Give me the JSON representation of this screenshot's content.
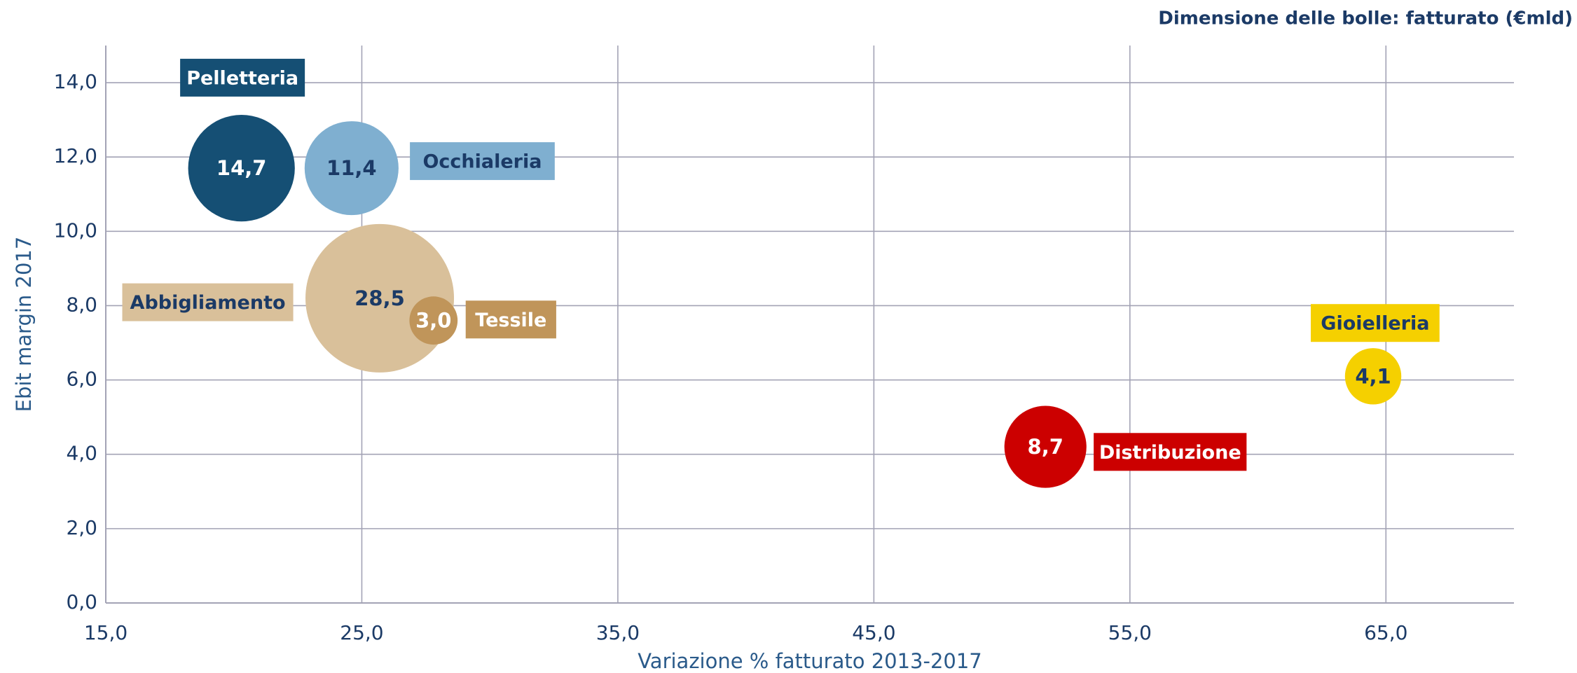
{
  "chart_data": {
    "type": "bubble",
    "title": "Dimensione delle bolle: fatturato (€mld)",
    "x_label": "Variazione % fatturato 2013-2017",
    "y_label": "Ebit margin 2017",
    "xlim": [
      15,
      70
    ],
    "ylim": [
      0,
      15
    ],
    "xticks": [
      {
        "value": 15,
        "label": "15,0"
      },
      {
        "value": 25,
        "label": "25,0"
      },
      {
        "value": 35,
        "label": "35,0"
      },
      {
        "value": 45,
        "label": "45,0"
      },
      {
        "value": 55,
        "label": "55,0"
      },
      {
        "value": 65,
        "label": "65,0"
      }
    ],
    "yticks": [
      {
        "value": 0,
        "label": "0,0"
      },
      {
        "value": 2,
        "label": "2,0"
      },
      {
        "value": 4,
        "label": "4,0"
      },
      {
        "value": 6,
        "label": "6,0"
      },
      {
        "value": 8,
        "label": "8,0"
      },
      {
        "value": 10,
        "label": "10,0"
      },
      {
        "value": 12,
        "label": "12,0"
      },
      {
        "value": 14,
        "label": "14,0"
      }
    ],
    "grid": true,
    "series": [
      {
        "name": "Pelletteria",
        "color": "#154f74",
        "text_color": "#ffffff",
        "x": 20.3,
        "y": 11.7,
        "size": 14.7,
        "value_label": "14,7"
      },
      {
        "name": "Occhialeria",
        "color": "#7fafd0",
        "text_color": "#1b3a66",
        "x": 24.6,
        "y": 11.7,
        "size": 11.4,
        "value_label": "11,4"
      },
      {
        "name": "Abbigliamento",
        "color": "#d9c09a",
        "text_color": "#1b3a66",
        "x": 25.7,
        "y": 8.2,
        "size": 28.5,
        "value_label": "28,5"
      },
      {
        "name": "Tessile",
        "color": "#c0955a",
        "text_color": "#ffffff",
        "x": 27.8,
        "y": 7.6,
        "size": 3.0,
        "value_label": "3,0"
      },
      {
        "name": "Distribuzione",
        "color": "#cc0000",
        "text_color": "#ffffff",
        "x": 51.7,
        "y": 4.2,
        "size": 8.7,
        "value_label": "8,7"
      },
      {
        "name": "Gioielleria",
        "color": "#f5d000",
        "text_color": "#1b3a66",
        "x": 64.5,
        "y": 6.1,
        "size": 4.1,
        "value_label": "4,1"
      }
    ]
  }
}
